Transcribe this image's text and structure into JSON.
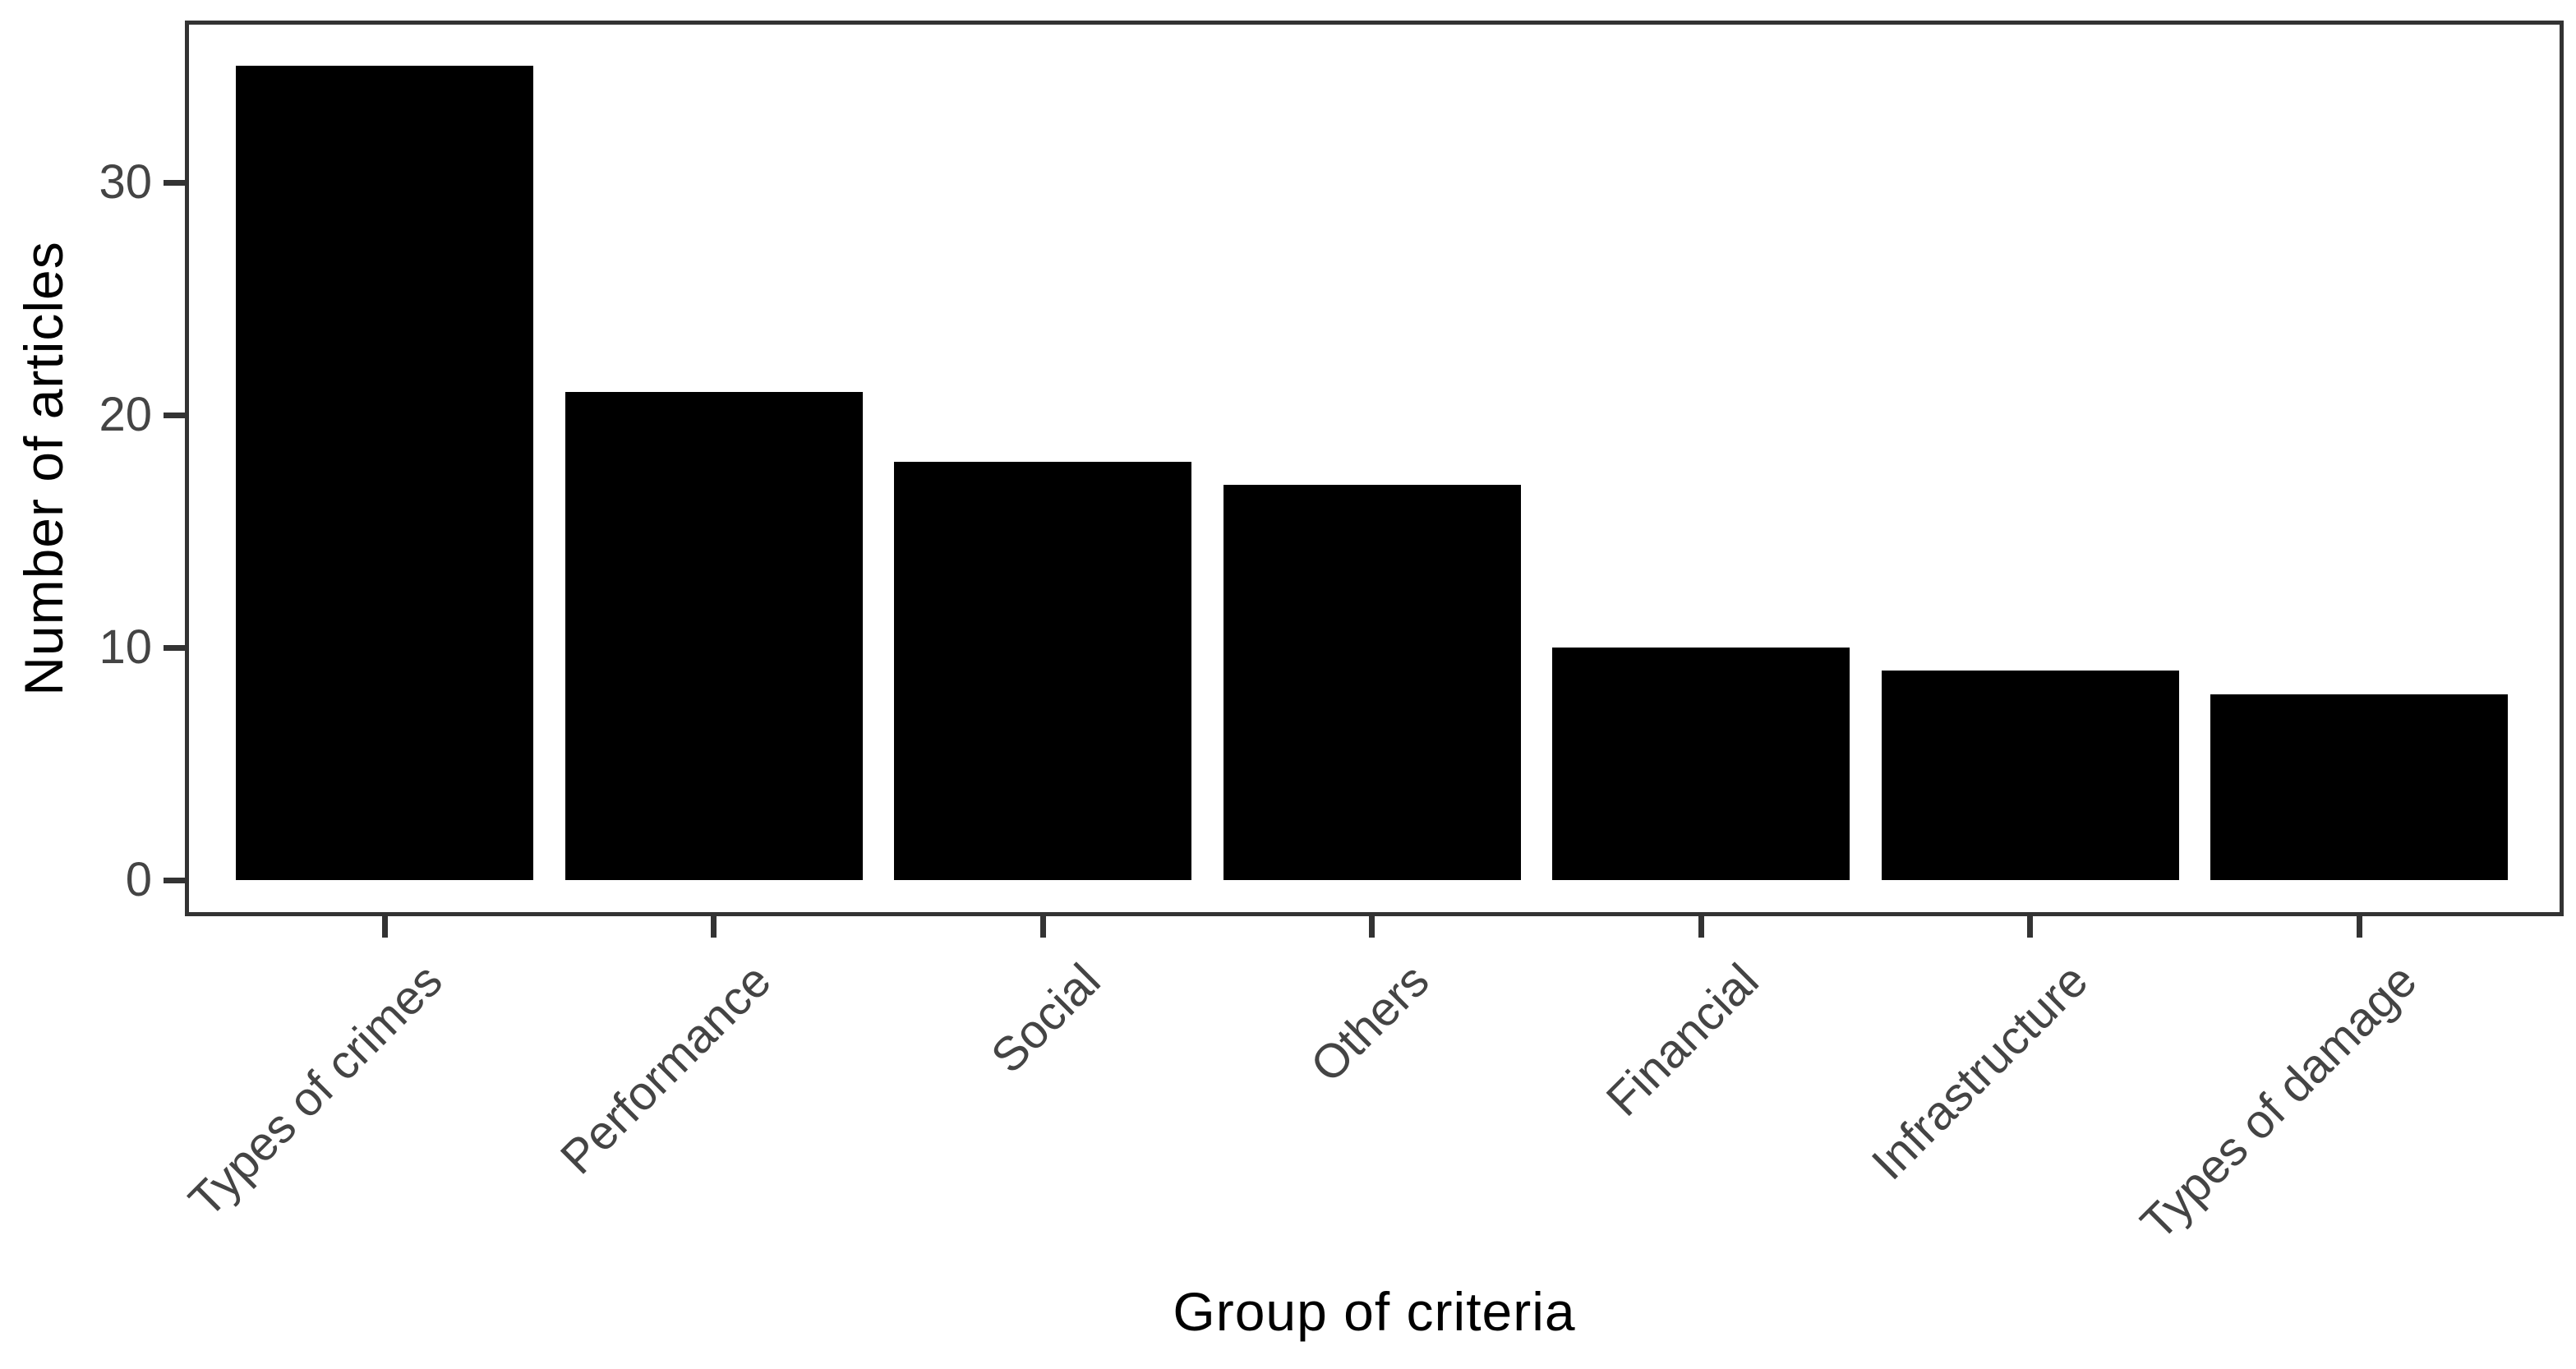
{
  "chart_data": {
    "type": "bar",
    "title": "",
    "xlabel": "Group of criteria",
    "ylabel": "Number of articles",
    "categories": [
      "Types of crimes",
      "Performance",
      "Social",
      "Others",
      "Financial",
      "Infrastructure",
      "Types of damage"
    ],
    "values": [
      35,
      21,
      18,
      17,
      10,
      9,
      8
    ],
    "yticks": [
      0,
      10,
      20,
      30
    ],
    "ylim": [
      0,
      36.8
    ],
    "grid": false,
    "legend": false,
    "x_label_rotation_deg": 45,
    "colors": {
      "bar_fill": "#000000",
      "panel_border": "#333333",
      "tick_mark": "#333333",
      "tick_label": "#444444",
      "axis_title": "#000000",
      "background": "#ffffff"
    }
  }
}
